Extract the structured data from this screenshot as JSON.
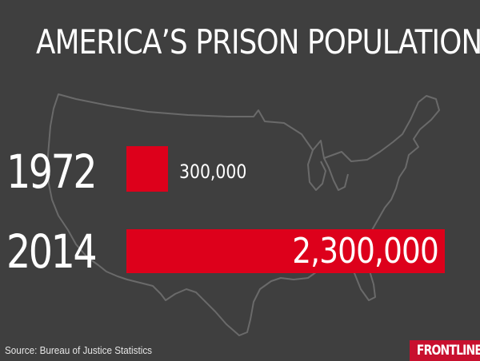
{
  "chart_data": {
    "type": "bar",
    "orientation": "horizontal",
    "title": "AMERICA’S PRISON POPULATION",
    "categories": [
      "1972",
      "2014"
    ],
    "values": [
      300000,
      2300000
    ],
    "value_labels": [
      "300,000",
      "2,300,000"
    ],
    "xlabel": "",
    "ylabel": "",
    "grid": false,
    "legend": "none",
    "bar_color": "#dd001b",
    "background_color": "#3f3f3f",
    "background_image": "us-map-outline"
  },
  "footer": {
    "source": "Source: Bureau of Justice Statistics",
    "logo": "FRONTLINE",
    "logo_color": "#c8102e"
  }
}
